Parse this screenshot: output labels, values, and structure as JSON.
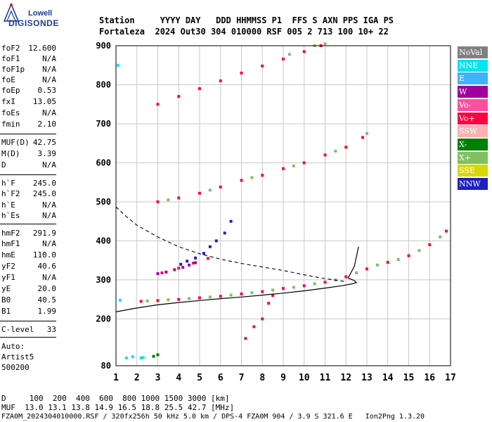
{
  "logo": {
    "line1": "Lowell",
    "line2": "DIGISONDE"
  },
  "header": {
    "labels": "Station     YYYY DAY   DDD HHMMSS P1  FFS S AXN PPS IGA PS",
    "values": "Fortaleza  2024 Out30 304 010000 RSF 005 2 713 100 10+ 22"
  },
  "params": [
    {
      "label": "foF2",
      "value": "12.600"
    },
    {
      "label": "foF1",
      "value": "N/A"
    },
    {
      "label": "foF1p",
      "value": "N/A"
    },
    {
      "label": "foE",
      "value": "N/A"
    },
    {
      "label": "foEp",
      "value": "0.53"
    },
    {
      "label": "fxI",
      "value": "13.05"
    },
    {
      "label": "foEs",
      "value": "N/A"
    },
    {
      "label": "fmin",
      "value": "2.10"
    },
    {
      "label": "MUF(D)",
      "value": "42.75"
    },
    {
      "label": "M(D)",
      "value": "3.39"
    },
    {
      "label": "D",
      "value": "N/A"
    },
    {
      "label": "h`F",
      "value": "245.0"
    },
    {
      "label": "h`F2",
      "value": "245.0"
    },
    {
      "label": "h`E",
      "value": "N/A"
    },
    {
      "label": "h`Es",
      "value": "N/A"
    },
    {
      "label": "hmF2",
      "value": "291.9"
    },
    {
      "label": "hmF1",
      "value": "N/A"
    },
    {
      "label": "hmE",
      "value": "110.0"
    },
    {
      "label": "yF2",
      "value": "40.6"
    },
    {
      "label": "yF1",
      "value": "N/A"
    },
    {
      "label": "yE",
      "value": "20.0"
    },
    {
      "label": "B0",
      "value": "40.5"
    },
    {
      "label": "B1",
      "value": "1.99"
    },
    {
      "label": "C-level",
      "value": "33"
    }
  ],
  "auto": {
    "line1": "Auto:",
    "line2": "Artist5",
    "line3": "500200"
  },
  "footer": {
    "d_row": "D     100  200  400  600  800 1000 1500 3000 [km]",
    "muf_row": "MUF  13.0 13.1 13.8 14.9 16.5 18.8 25.5 42.7 [MHz]",
    "file_row": "FZA0M_2024304010000.RSF / 320fx256h 50 kHz 5.0 km / DPS-4 FZA0M 904 / 3.9 S 321.6 E   Ion2Png 1.3.20"
  },
  "legend": [
    {
      "label": "NoVal",
      "bg": "#808080",
      "fg": "#ffffff"
    },
    {
      "label": "NNE",
      "bg": "#00e5ee",
      "fg": "#ffffff"
    },
    {
      "label": "E",
      "bg": "#3cb4ff",
      "fg": "#ffffff"
    },
    {
      "label": "W",
      "bg": "#a000a0",
      "fg": "#ffffff"
    },
    {
      "label": "Vo-",
      "bg": "#ff50a0",
      "fg": "#ffffff"
    },
    {
      "label": "Vo+",
      "bg": "#ff0040",
      "fg": "#ffffff"
    },
    {
      "label": "SSW",
      "bg": "#ffb0b0",
      "fg": "#ffffff"
    },
    {
      "label": "X-",
      "bg": "#008000",
      "fg": "#ffffff"
    },
    {
      "label": "X+",
      "bg": "#80c060",
      "fg": "#ffffff"
    },
    {
      "label": "SSE",
      "bg": "#d8d800",
      "fg": "#ffffff"
    },
    {
      "label": "NNW",
      "bg": "#2020c0",
      "fg": "#ffffff"
    }
  ],
  "chart_data": {
    "type": "scatter",
    "title": "",
    "xlabel": "",
    "ylabel": "",
    "xlim": [
      1,
      17
    ],
    "ylim": [
      80,
      900
    ],
    "xticks": [
      1,
      2,
      3,
      4,
      5,
      6,
      7,
      8,
      9,
      10,
      11,
      12,
      13,
      14,
      15,
      16,
      17
    ],
    "yticks": [
      80,
      200,
      300,
      400,
      500,
      600,
      700,
      800,
      900
    ],
    "grid": true,
    "series": [
      {
        "name": "Vo+",
        "color": "#ff0040",
        "points": [
          [
            2.2,
            245
          ],
          [
            3,
            247
          ],
          [
            4,
            250
          ],
          [
            5,
            254
          ],
          [
            6,
            258
          ],
          [
            7,
            264
          ],
          [
            8,
            270
          ],
          [
            9,
            278
          ],
          [
            10,
            285
          ],
          [
            11,
            294
          ],
          [
            12,
            308
          ],
          [
            13,
            328
          ],
          [
            14,
            345
          ],
          [
            15,
            362
          ],
          [
            16,
            390
          ],
          [
            16.8,
            425
          ],
          [
            3,
            500
          ],
          [
            4,
            510
          ],
          [
            5,
            522
          ],
          [
            6,
            538
          ],
          [
            7,
            555
          ],
          [
            8,
            568
          ],
          [
            9,
            585
          ],
          [
            10,
            600
          ],
          [
            11,
            620
          ],
          [
            12,
            640
          ],
          [
            12.8,
            665
          ],
          [
            3,
            750
          ],
          [
            4,
            770
          ],
          [
            5,
            790
          ],
          [
            6,
            810
          ],
          [
            7,
            830
          ],
          [
            8,
            848
          ],
          [
            9,
            866
          ],
          [
            10,
            885
          ],
          [
            10.8,
            900
          ],
          [
            3.2,
            318
          ],
          [
            4,
            330
          ],
          [
            4.7,
            343
          ],
          [
            5.4,
            355
          ],
          [
            7.2,
            150
          ],
          [
            7.6,
            180
          ],
          [
            8,
            200
          ],
          [
            8.3,
            240
          ],
          [
            8.5,
            260
          ]
        ]
      },
      {
        "name": "X+",
        "color": "#80c060",
        "points": [
          [
            2.5,
            246
          ],
          [
            3.5,
            249
          ],
          [
            4.5,
            252
          ],
          [
            5.5,
            256
          ],
          [
            6.5,
            261
          ],
          [
            7.5,
            267
          ],
          [
            8.5,
            274
          ],
          [
            9.5,
            281
          ],
          [
            10.5,
            290
          ],
          [
            11.5,
            300
          ],
          [
            12.5,
            318
          ],
          [
            13.5,
            338
          ],
          [
            14.5,
            352
          ],
          [
            15.5,
            375
          ],
          [
            16.5,
            410
          ],
          [
            3.5,
            505
          ],
          [
            5.5,
            530
          ],
          [
            7.5,
            562
          ],
          [
            9.5,
            592
          ],
          [
            11.5,
            630
          ],
          [
            13,
            675
          ],
          [
            9.3,
            878
          ],
          [
            10.5,
            900
          ],
          [
            11,
            905
          ]
        ]
      },
      {
        "name": "W",
        "color": "#a000a0",
        "points": [
          [
            3,
            316
          ],
          [
            3.4,
            320
          ],
          [
            3.8,
            326
          ],
          [
            4.2,
            332
          ],
          [
            4.5,
            338
          ],
          [
            4.8,
            344
          ]
        ]
      },
      {
        "name": "NNW",
        "color": "#2020c0",
        "points": [
          [
            4.1,
            340
          ],
          [
            4.4,
            348
          ],
          [
            4.8,
            356
          ],
          [
            5.2,
            368
          ],
          [
            5.5,
            385
          ],
          [
            5.8,
            400
          ],
          [
            6.2,
            420
          ],
          [
            6.5,
            450
          ]
        ]
      },
      {
        "name": "NNE",
        "color": "#00e5ee",
        "points": [
          [
            1.1,
            850
          ],
          [
            1.2,
            248
          ],
          [
            1.5,
            100
          ],
          [
            1.8,
            103
          ],
          [
            2.2,
            100
          ],
          [
            2.3,
            101
          ]
        ]
      },
      {
        "name": "X-",
        "color": "#008000",
        "points": [
          [
            2.8,
            104
          ],
          [
            3,
            108
          ]
        ]
      }
    ],
    "profile_solid": [
      [
        1,
        218
      ],
      [
        2,
        228
      ],
      [
        3,
        236
      ],
      [
        4,
        242
      ],
      [
        5,
        247
      ],
      [
        6,
        252
      ],
      [
        7,
        256
      ],
      [
        8,
        261
      ],
      [
        9,
        266
      ],
      [
        10,
        272
      ],
      [
        11,
        279
      ],
      [
        11.8,
        285
      ],
      [
        12.3,
        290
      ],
      [
        12.5,
        293
      ],
      [
        12.4,
        298
      ],
      [
        12.1,
        305
      ],
      [
        12.4,
        335
      ],
      [
        12.6,
        385
      ]
    ],
    "profile_dashed": [
      [
        1,
        487
      ],
      [
        1.5,
        462
      ],
      [
        2,
        440
      ],
      [
        3,
        410
      ],
      [
        4,
        385
      ],
      [
        5,
        367
      ],
      [
        6,
        353
      ],
      [
        7,
        342
      ],
      [
        8,
        333
      ],
      [
        9,
        324
      ],
      [
        10,
        313
      ],
      [
        10.8,
        305
      ],
      [
        11.4,
        300
      ],
      [
        11.9,
        296
      ]
    ]
  }
}
